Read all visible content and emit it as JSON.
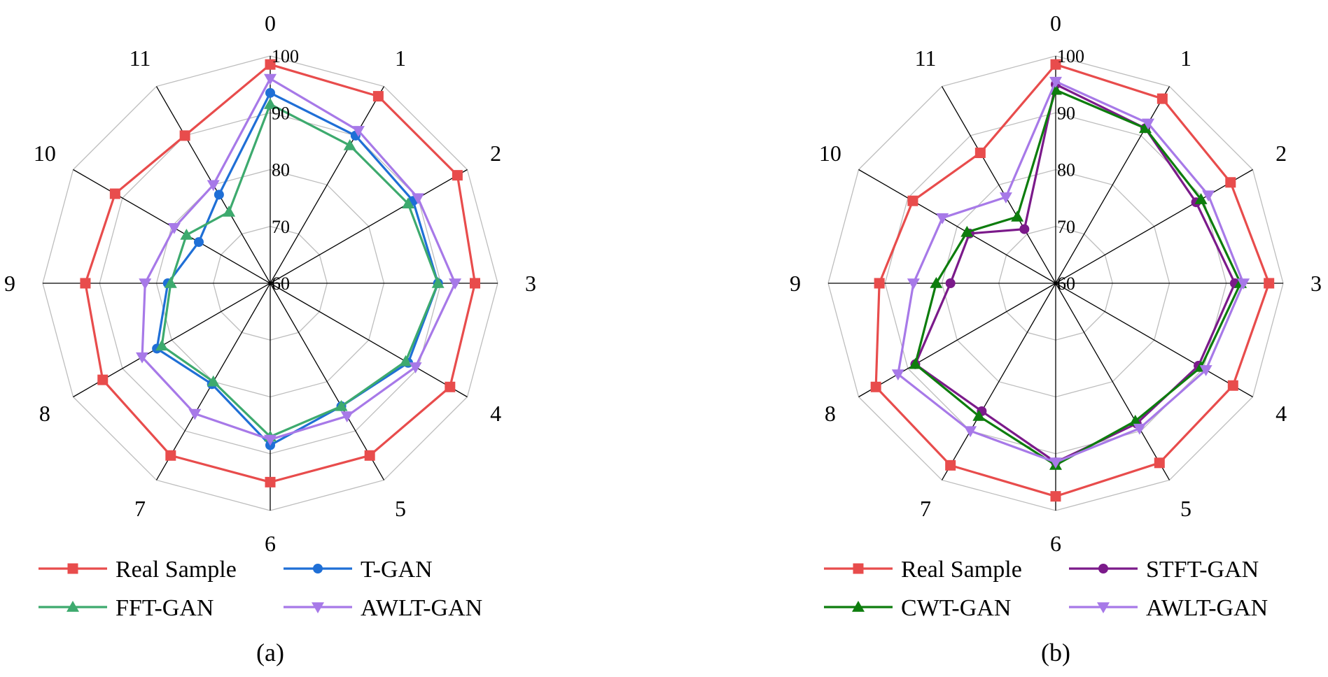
{
  "chart_data": [
    {
      "type": "radar",
      "panel_label": "(a)",
      "categories": [
        "0",
        "1",
        "2",
        "3",
        "4",
        "5",
        "6",
        "7",
        "8",
        "9",
        "10",
        "11"
      ],
      "rlim": [
        60,
        100
      ],
      "ticks": [
        60,
        70,
        80,
        90,
        100
      ],
      "tick_labels": [
        "60",
        "70",
        "80",
        "90",
        "100"
      ],
      "grid": true,
      "legend_position": "bottom",
      "series": [
        {
          "name": "Real Sample",
          "color": "#e84c4c",
          "marker": "square",
          "values": [
            98.5,
            98,
            98,
            96,
            96.5,
            95,
            95,
            95,
            94,
            92.5,
            91.5,
            90
          ]
        },
        {
          "name": "T-GAN",
          "color": "#1f6fd6",
          "marker": "circle",
          "values": [
            93.5,
            90,
            89,
            89.5,
            88,
            85,
            88.5,
            80.5,
            83,
            78,
            74.5,
            78
          ]
        },
        {
          "name": "FFT-GAN",
          "color": "#3daa6e",
          "marker": "triangle-up",
          "values": [
            91.5,
            88,
            88,
            89.5,
            87.5,
            85,
            87,
            80,
            82,
            77.5,
            77,
            74.5
          ]
        },
        {
          "name": "AWLT-GAN",
          "color": "#a779e8",
          "marker": "triangle-down",
          "values": [
            96,
            91,
            90,
            92.5,
            89.5,
            87,
            87.5,
            86.5,
            86,
            82,
            79.5,
            80
          ]
        }
      ]
    },
    {
      "type": "radar",
      "panel_label": "(b)",
      "categories": [
        "0",
        "1",
        "2",
        "3",
        "4",
        "5",
        "6",
        "7",
        "8",
        "9",
        "10",
        "11"
      ],
      "rlim": [
        60,
        100
      ],
      "ticks": [
        60,
        70,
        80,
        90,
        100
      ],
      "tick_labels": [
        "60",
        "70",
        "80",
        "90",
        "100"
      ],
      "grid": true,
      "legend_position": "bottom",
      "series": [
        {
          "name": "Real Sample",
          "color": "#e84c4c",
          "marker": "square",
          "values": [
            98.5,
            97.5,
            95.5,
            97.5,
            96,
            96.5,
            97.5,
            97,
            96.5,
            91,
            89,
            86.5
          ]
        },
        {
          "name": "STFT-GAN",
          "color": "#7b1a8a",
          "marker": "circle",
          "values": [
            95,
            91.5,
            88.5,
            91.5,
            89,
            88.5,
            91.5,
            86,
            88.5,
            78.5,
            77.5,
            71
          ]
        },
        {
          "name": "CWT-GAN",
          "color": "#0d7d0d",
          "marker": "triangle-up",
          "values": [
            94,
            91.5,
            89.5,
            92.5,
            89.5,
            88,
            92,
            87,
            88.5,
            81,
            78,
            73.5
          ]
        },
        {
          "name": "AWLT-GAN",
          "color": "#a779e8",
          "marker": "triangle-down",
          "values": [
            95.5,
            92.5,
            91,
            93,
            90.5,
            89.5,
            91.5,
            90,
            92,
            85,
            83,
            77.5
          ]
        }
      ]
    }
  ]
}
